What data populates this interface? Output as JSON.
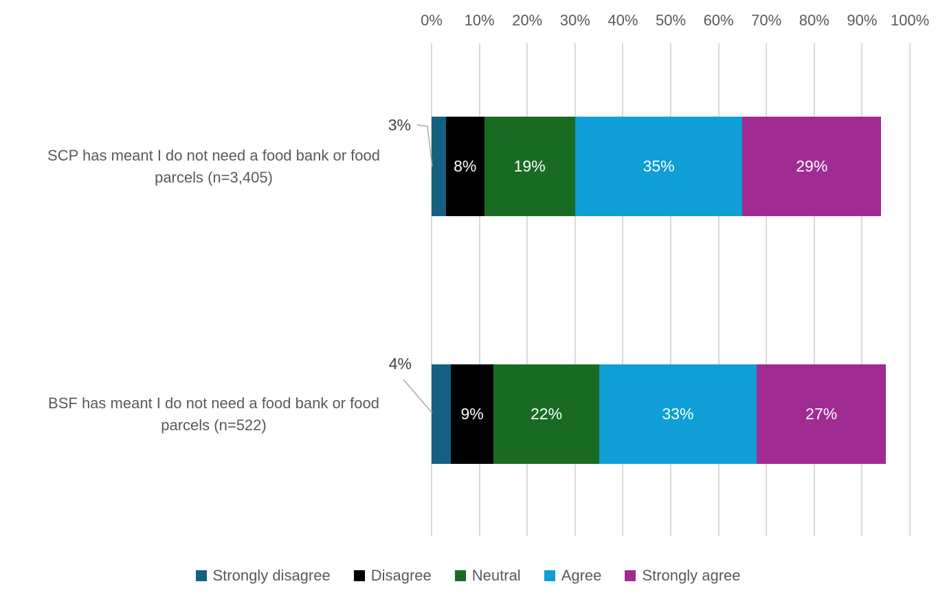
{
  "chart_data": {
    "type": "bar",
    "variant": "horizontal_stacked",
    "title": "",
    "categories": [
      "SCP has meant I do not need a food bank or food parcels (n=3,405)",
      "BSF has meant I do not need a food bank or food parcels (n=522)"
    ],
    "category_lines": [
      [
        "SCP has meant I do not need a food bank or food",
        "parcels (n=3,405)"
      ],
      [
        "BSF has meant I do not need a food bank or food",
        "parcels (n=522)"
      ]
    ],
    "series": [
      {
        "name": "Strongly disagree",
        "color": "#156082",
        "values": [
          3,
          4
        ],
        "labels": [
          "3%",
          "4%"
        ],
        "label_placement": "callout_outside"
      },
      {
        "name": "Disagree",
        "color": "#000000",
        "values": [
          8,
          9
        ],
        "labels": [
          "8%",
          "9%"
        ],
        "label_placement": "inside"
      },
      {
        "name": "Neutral",
        "color": "#196B24",
        "values": [
          19,
          22
        ],
        "labels": [
          "19%",
          "22%"
        ],
        "label_placement": "inside"
      },
      {
        "name": "Agree",
        "color": "#0F9ED5",
        "values": [
          35,
          33
        ],
        "labels": [
          "35%",
          "33%"
        ],
        "label_placement": "inside"
      },
      {
        "name": "Strongly agree",
        "color": "#A02B93",
        "values": [
          29,
          27
        ],
        "labels": [
          "29%",
          "27%"
        ],
        "label_placement": "inside"
      }
    ],
    "x_axis": {
      "position": "top",
      "min": 0,
      "max": 100,
      "tick_step": 10,
      "tick_labels": [
        "0%",
        "10%",
        "20%",
        "30%",
        "40%",
        "50%",
        "60%",
        "70%",
        "80%",
        "90%",
        "100%"
      ],
      "grid": true
    },
    "legend": {
      "position": "bottom",
      "entries": [
        "Strongly disagree",
        "Disagree",
        "Neutral",
        "Agree",
        "Strongly agree"
      ]
    }
  },
  "colors": {
    "background": "#FFFFFF",
    "gridline": "#D9D9D9",
    "axis_text": "#595959",
    "category_text": "#595959",
    "legend_text": "#595959",
    "data_label_inside": "#FFFFFF",
    "data_label_outside": "#404040",
    "leader_line": "#A6A6A6"
  }
}
